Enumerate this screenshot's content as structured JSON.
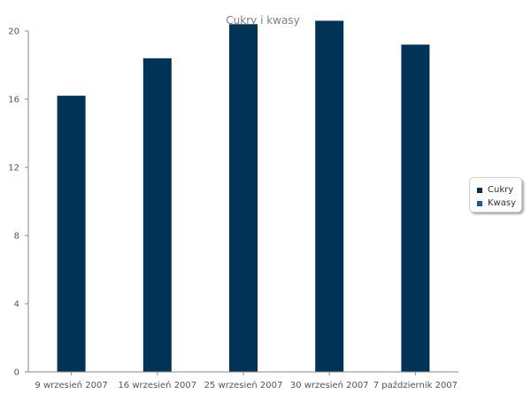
{
  "chart_data": {
    "type": "bar",
    "title": "Cukry i kwasy",
    "categories": [
      "9 wrzesień 2007",
      "16 wrzesień 2007",
      "25 wrzesień 2007",
      "30 wrzesień 2007",
      "7 październik 2007"
    ],
    "series": [
      {
        "name": "Cukry",
        "color": "#003355",
        "values": [
          16.2,
          18.4,
          20.4,
          20.6,
          19.2
        ]
      },
      {
        "name": "Kwasy",
        "color": "#1a5c99",
        "values": [
          null,
          null,
          null,
          null,
          null
        ]
      }
    ],
    "ylim": [
      0,
      20
    ],
    "yticks": [
      0,
      4,
      8,
      12,
      16,
      20
    ],
    "ytick_labels": [
      "0",
      "4",
      "8",
      "12",
      "16",
      "20"
    ],
    "grid": false,
    "legend_position": "right",
    "colors": {
      "axis": "#8a8a8a",
      "title": "#7f7f7f"
    }
  }
}
